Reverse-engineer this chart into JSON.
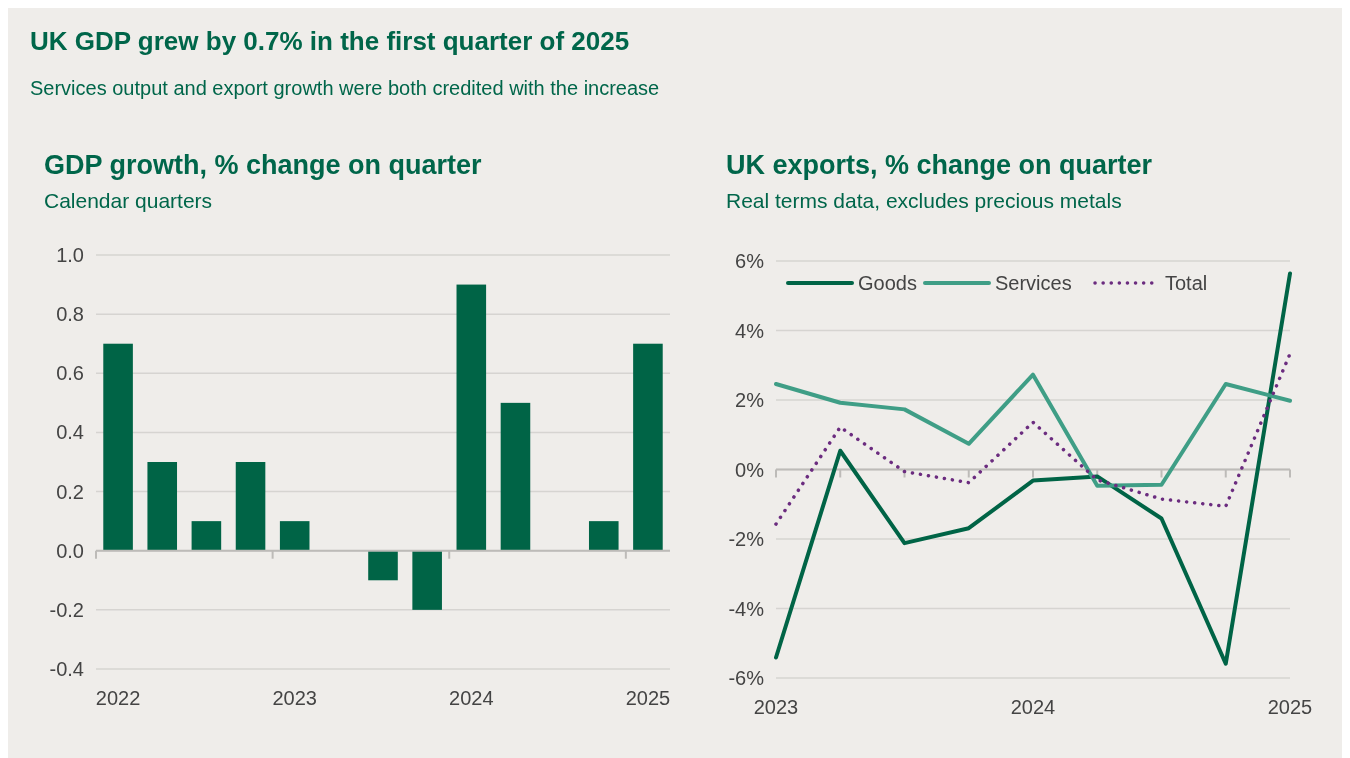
{
  "chart_data": [
    {
      "type": "bar",
      "title": "GDP growth, % change on quarter",
      "subtitle": "Calendar quarters",
      "annotations": [
        "UK GDP grew by 0.7% in the first quarter of 2025",
        "Services output and export growth were both credited with the increase"
      ],
      "categories": [
        "2022",
        null,
        null,
        null,
        "2023",
        null,
        null,
        null,
        "2024",
        null,
        null,
        null,
        "2025"
      ],
      "values": [
        0.7,
        0.3,
        0.1,
        0.3,
        0.1,
        0,
        -0.1,
        -0.2,
        0.9,
        0.5,
        0,
        0.1,
        0.7
      ],
      "color": "#006446",
      "ylim": [
        -0.4,
        1.0
      ],
      "yticks": [
        {
          "value": -0.4,
          "label": "-0.4"
        },
        {
          "value": -0.2,
          "label": "-0.2"
        },
        {
          "value": 0,
          "label": "0.0"
        },
        {
          "value": 0.2,
          "label": "0.2"
        },
        {
          "value": 0.4,
          "label": "0.4"
        },
        {
          "value": 0.6,
          "label": "0.6"
        },
        {
          "value": 0.8,
          "label": "0.8"
        },
        {
          "value": 1.0,
          "label": "1.0"
        }
      ],
      "grid": "y"
    },
    {
      "type": "line",
      "title": "UK exports, % change on quarter",
      "subtitle": "Real terms data, excludes precious metals",
      "categories": [
        "2023",
        null,
        null,
        null,
        "2024",
        null,
        null,
        null,
        "2025"
      ],
      "series": [
        {
          "name": "Goods",
          "color": "#006446",
          "values": [
            -5.41,
            0.54,
            -2.12,
            -1.69,
            -0.32,
            -0.2,
            -1.41,
            -5.59,
            5.64
          ]
        },
        {
          "name": "Services",
          "color": "#3f9e86",
          "values": [
            2.46,
            1.92,
            1.73,
            0.74,
            2.73,
            -0.47,
            -0.44,
            2.46,
            1.98
          ]
        },
        {
          "name": "Total",
          "color": "#6b2c7f",
          "line_style": "dotted",
          "values": [
            -1.57,
            1.22,
            -0.06,
            -0.38,
            1.36,
            -0.3,
            -0.85,
            -1.06,
            3.33
          ]
        }
      ],
      "ylim": [
        -6,
        6
      ],
      "yticks": [
        {
          "value": -6,
          "label": "-6%"
        },
        {
          "value": -4,
          "label": "-4%"
        },
        {
          "value": -2,
          "label": "-2%"
        },
        {
          "value": 0,
          "label": "0%"
        },
        {
          "value": 2,
          "label": "2%"
        },
        {
          "value": 4,
          "label": "4%"
        },
        {
          "value": 6,
          "label": "6%"
        }
      ],
      "grid": "y",
      "legend": "top left"
    }
  ]
}
